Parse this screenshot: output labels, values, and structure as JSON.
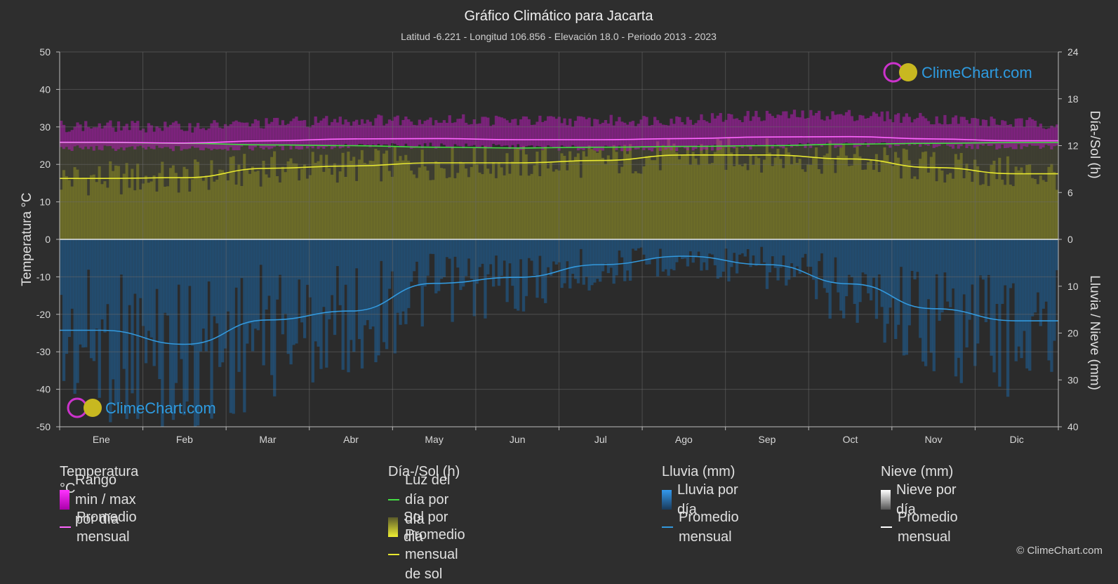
{
  "header": {
    "title": "Gráfico Climático para Jacarta",
    "subtitle": "Latitud -6.221 - Longitud 106.856 - Elevación 18.0 - Periodo 2013 - 2023"
  },
  "watermark": {
    "text": "ClimeChart.com"
  },
  "copyright": "© ClimeChart.com",
  "chart_data": {
    "type": "area",
    "months": [
      "Ene",
      "Feb",
      "Mar",
      "Abr",
      "May",
      "Jun",
      "Jul",
      "Ago",
      "Sep",
      "Oct",
      "Nov",
      "Dic"
    ],
    "axes": {
      "left": {
        "label": "Temperatura °C",
        "range": [
          -50,
          50
        ],
        "ticks": [
          50,
          40,
          30,
          20,
          10,
          0,
          -10,
          -20,
          -30,
          -40,
          -50
        ]
      },
      "right_top": {
        "label": "Día-/Sol (h)",
        "range": [
          0,
          24
        ],
        "ticks": [
          24,
          18,
          12,
          6,
          0
        ]
      },
      "right_bottom": {
        "label": "Lluvia / Nieve (mm)",
        "range": [
          0,
          40
        ],
        "ticks": [
          0,
          10,
          20,
          30,
          40
        ]
      }
    },
    "series": [
      {
        "name": "Rango min / max por día",
        "unit": "°C",
        "min": [
          24.3,
          24.2,
          24.5,
          24.8,
          25.0,
          24.6,
          24.2,
          24.3,
          24.8,
          25.2,
          25.0,
          24.6
        ],
        "max": [
          30.2,
          30.0,
          31.0,
          31.8,
          32.0,
          31.6,
          31.6,
          32.0,
          33.0,
          33.2,
          32.2,
          31.0
        ],
        "color": "#cc22cc"
      },
      {
        "name": "Promedio mensual",
        "unit": "°C",
        "values": [
          25.9,
          25.7,
          26.3,
          26.8,
          26.9,
          26.6,
          26.6,
          26.9,
          27.3,
          27.4,
          26.8,
          26.3
        ],
        "color": "#ff66ff"
      },
      {
        "name": "Luz del día por día",
        "unit": "h",
        "values": [
          12.4,
          12.3,
          12.1,
          12.0,
          11.8,
          11.7,
          11.8,
          11.9,
          12.0,
          12.2,
          12.3,
          12.4
        ],
        "color": "#44dd44"
      },
      {
        "name": "Sol por día",
        "unit": "h",
        "values": [
          7.8,
          7.9,
          9.1,
          9.4,
          9.8,
          9.8,
          10.1,
          10.8,
          10.8,
          10.3,
          9.2,
          8.4
        ],
        "color": "#bbbb22"
      },
      {
        "name": "Promedio mensual de sol",
        "unit": "h",
        "values": [
          7.8,
          7.9,
          9.1,
          9.4,
          9.8,
          9.8,
          10.1,
          10.8,
          10.8,
          10.3,
          9.2,
          8.4
        ],
        "color": "#e8e830"
      },
      {
        "name": "Lluvia por día",
        "unit": "mm",
        "values": [
          19.4,
          22.4,
          17.2,
          15.3,
          9.4,
          8.1,
          5.4,
          3.6,
          5.4,
          9.5,
          14.8,
          17.4
        ],
        "color": "#2a7ac0"
      },
      {
        "name": "Promedio mensual",
        "unit": "mm",
        "values": [
          19.4,
          22.4,
          17.2,
          15.3,
          9.4,
          8.1,
          5.4,
          3.6,
          5.4,
          9.5,
          14.8,
          17.4
        ],
        "color": "#3399dd"
      },
      {
        "name": "Nieve por día",
        "unit": "mm",
        "values": [
          0,
          0,
          0,
          0,
          0,
          0,
          0,
          0,
          0,
          0,
          0,
          0
        ],
        "color": "#dddddd"
      },
      {
        "name": "Promedio mensual",
        "unit": "mm",
        "values": [
          0,
          0,
          0,
          0,
          0,
          0,
          0,
          0,
          0,
          0,
          0,
          0
        ],
        "color": "#ffffff"
      }
    ],
    "grid": true
  },
  "legend": {
    "groups": [
      {
        "title": "Temperatura °C",
        "items": [
          {
            "label": "Rango min / max por día",
            "swatch": "box",
            "color": "#dd22dd"
          },
          {
            "label": "Promedio mensual",
            "swatch": "line",
            "color": "#ff66ff"
          }
        ]
      },
      {
        "title": "Día-/Sol (h)",
        "items": [
          {
            "label": "Luz del día por día",
            "swatch": "line",
            "color": "#44dd44"
          },
          {
            "label": "Sol por día",
            "swatch": "box",
            "color": "#cccc22"
          },
          {
            "label": "Promedio mensual de sol",
            "swatch": "line",
            "color": "#e8e830"
          }
        ]
      },
      {
        "title": "Lluvia (mm)",
        "items": [
          {
            "label": "Lluvia por día",
            "swatch": "box",
            "color": "#2a7ac0"
          },
          {
            "label": "Promedio mensual",
            "swatch": "line",
            "color": "#3399dd"
          }
        ]
      },
      {
        "title": "Nieve (mm)",
        "items": [
          {
            "label": "Nieve por día",
            "swatch": "box",
            "color": "#dddddd"
          },
          {
            "label": "Promedio mensual",
            "swatch": "line",
            "color": "#ffffff"
          }
        ]
      }
    ]
  }
}
